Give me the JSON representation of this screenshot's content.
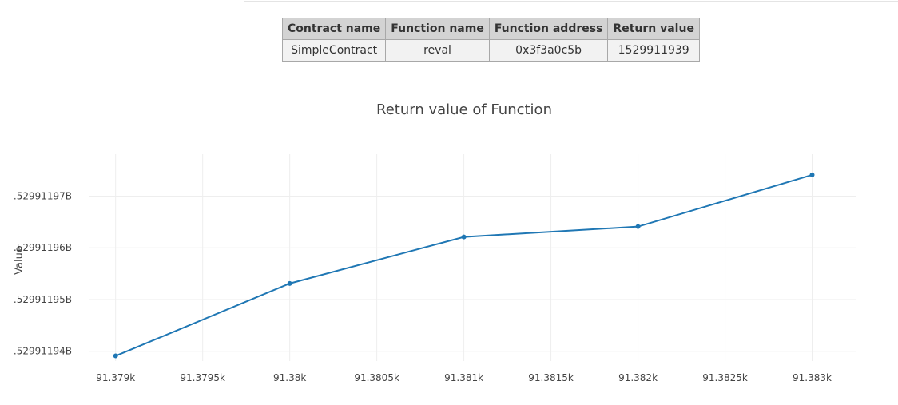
{
  "table": {
    "headers": [
      "Contract name",
      "Function name",
      "Function address",
      "Return value"
    ],
    "row": [
      "SimpleContract",
      "reval",
      "0x3f3a0c5b",
      "1529911939"
    ]
  },
  "chart_data": {
    "type": "line",
    "title": "Return value of Function",
    "xlabel": "",
    "ylabel": "Value",
    "x": [
      91379,
      91380,
      91381,
      91382,
      91383
    ],
    "series": [
      {
        "values": [
          1529911939.1,
          1529911953.1,
          1529911962.1,
          1529911964.1,
          1529911974.1
        ]
      }
    ],
    "xlim": [
      91378.85,
      91383.25
    ],
    "ylim": [
      1529911938.1,
      1529911978.1
    ],
    "x_ticks": [
      91379,
      91379.5,
      91380,
      91380.5,
      91381,
      91381.5,
      91382,
      91382.5,
      91383
    ],
    "x_tick_labels": [
      "91.379k",
      "91.3795k",
      "91.38k",
      "91.3805k",
      "91.381k",
      "91.3815k",
      "91.382k",
      "91.3825k",
      "91.383k"
    ],
    "y_ticks": [
      1529911940,
      1529911950,
      1529911960,
      1529911970
    ],
    "y_tick_labels": [
      ".52991194B",
      ".52991195B",
      ".52991196B",
      ".52991197B"
    ],
    "grid": true,
    "colors": {
      "line": "#1f77b4",
      "grid": "#eeeeee"
    }
  }
}
